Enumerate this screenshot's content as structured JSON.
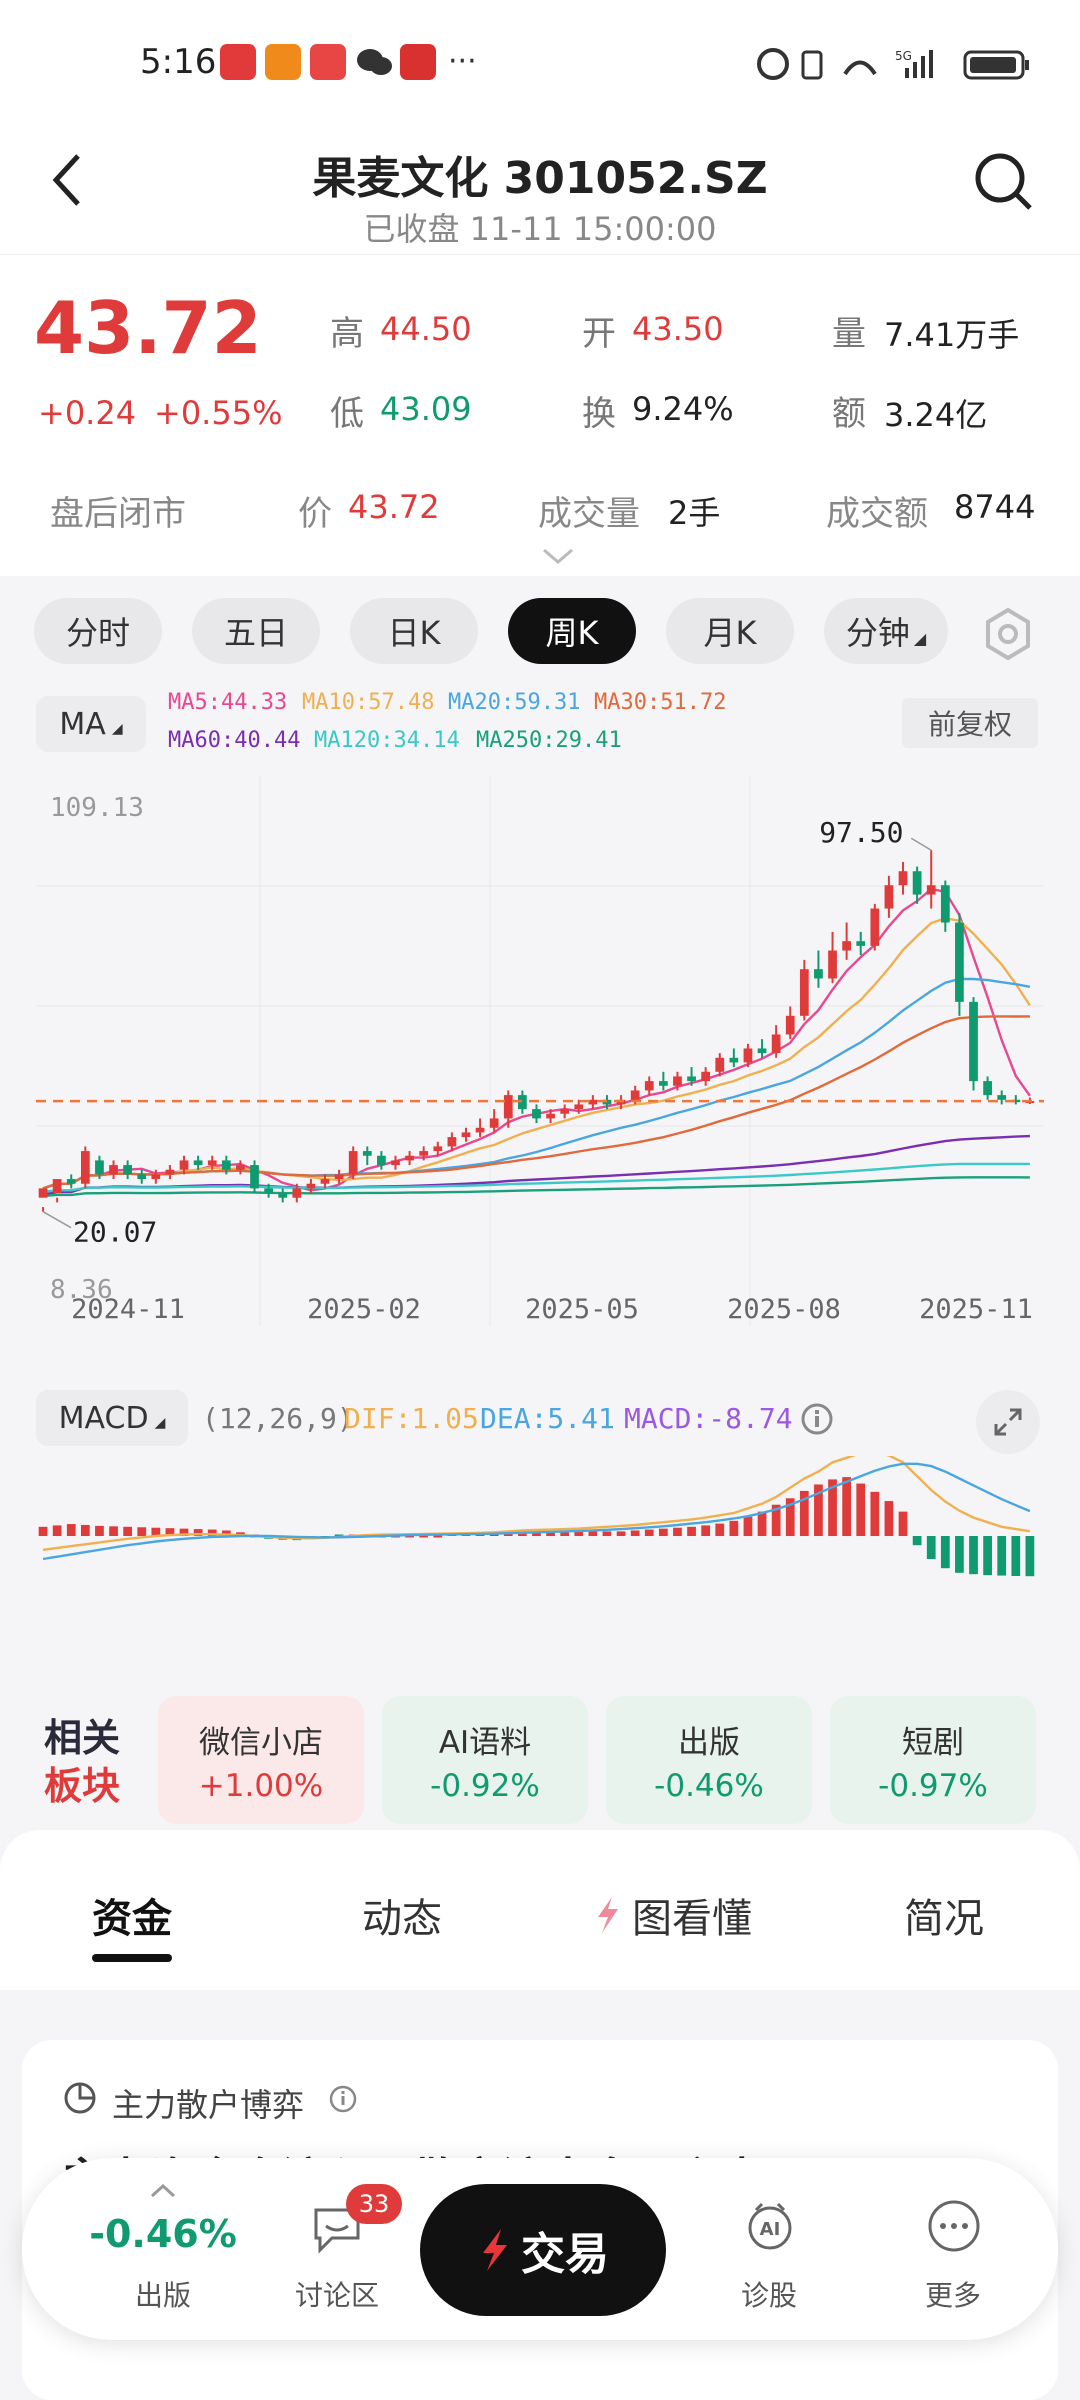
{
  "status": {
    "time": "5:16",
    "more": "···",
    "net": "5G"
  },
  "header": {
    "title": "果麦文化 301052.SZ",
    "subtitle": "已收盘 11-11 15:00:00"
  },
  "quote": {
    "price": "43.72",
    "change": "+0.24",
    "change_pct": "+0.55%",
    "high_label": "高",
    "high": "44.50",
    "low_label": "低",
    "low": "43.09",
    "open_label": "开",
    "open": "43.50",
    "turnover_label": "换",
    "turnover": "9.24%",
    "volume_label": "量",
    "volume": "7.41万手",
    "amount_label": "额",
    "amount": "3.24亿",
    "after_hours_label": "盘后闭市",
    "ah_price_label": "价",
    "ah_price": "43.72",
    "ah_volume_label": "成交量",
    "ah_volume": "2手",
    "ah_amount_label": "成交额",
    "ah_amount": "8744"
  },
  "period_tabs": [
    {
      "label": "分时"
    },
    {
      "label": "五日"
    },
    {
      "label": "日K"
    },
    {
      "label": "周K"
    },
    {
      "label": "月K"
    },
    {
      "label": "分钟"
    }
  ],
  "active_tab": "周K",
  "ma": {
    "selector": "MA",
    "ma5": "MA5:44.33",
    "ma10": "MA10:57.48",
    "ma20": "MA20:59.31",
    "ma30": "MA30:51.72",
    "ma60": "MA60:40.44",
    "ma120": "MA120:34.14",
    "ma250": "MA250:29.41",
    "adjust": "前复权"
  },
  "colors": {
    "up": "#e03b3b",
    "down": "#0f9a6f",
    "ma5": "#e8488f",
    "ma10": "#f0b050",
    "ma20": "#4aa6e0",
    "ma30": "#e06a3b",
    "ma60": "#7a2fb0",
    "ma120": "#3cc8c8",
    "ma250": "#1aa07a"
  },
  "chart_data": {
    "type": "candlestick",
    "y_top_label": "109.13",
    "y_bottom_label": "8.36",
    "max_mark": "97.50",
    "min_mark": "20.07",
    "current_price_line": 43.72,
    "x_ticks": [
      "2024-11",
      "2025-02",
      "2025-05",
      "2025-08",
      "2025-11"
    ],
    "candles": [
      [
        23,
        25,
        21,
        20
      ],
      [
        24,
        27,
        23,
        22
      ],
      [
        27,
        26,
        28,
        25
      ],
      [
        26,
        33,
        34,
        25
      ],
      [
        31,
        28,
        32,
        27
      ],
      [
        28,
        30,
        31,
        27
      ],
      [
        30,
        28,
        31,
        27
      ],
      [
        28,
        27,
        29,
        26
      ],
      [
        27,
        28,
        29,
        26
      ],
      [
        28,
        29,
        30,
        27
      ],
      [
        29,
        31,
        32,
        28
      ],
      [
        31,
        30,
        32,
        29
      ],
      [
        30,
        31,
        32,
        29
      ],
      [
        31,
        29,
        32,
        28
      ],
      [
        29,
        30,
        31,
        28
      ],
      [
        30,
        25,
        31,
        24
      ],
      [
        25,
        24,
        26,
        23
      ],
      [
        24,
        23,
        25,
        22
      ],
      [
        23,
        25,
        26,
        22
      ],
      [
        25,
        26,
        27,
        24
      ],
      [
        26,
        27,
        28,
        25
      ],
      [
        27,
        28,
        29,
        26
      ],
      [
        28,
        33,
        34,
        27
      ],
      [
        33,
        32,
        34,
        30
      ],
      [
        32,
        30,
        33,
        29
      ],
      [
        30,
        31,
        32,
        29
      ],
      [
        31,
        32,
        33,
        30
      ],
      [
        32,
        33,
        34,
        31
      ],
      [
        33,
        34,
        35,
        32
      ],
      [
        34,
        36,
        37,
        33
      ],
      [
        36,
        37,
        38,
        35
      ],
      [
        37,
        38,
        40,
        36
      ],
      [
        38,
        40,
        42,
        37
      ],
      [
        40,
        45,
        46,
        38
      ],
      [
        45,
        42,
        46,
        41
      ],
      [
        42,
        40,
        43,
        39
      ],
      [
        40,
        41,
        42,
        39
      ],
      [
        41,
        42,
        43,
        40
      ],
      [
        42,
        43,
        44,
        41
      ],
      [
        43,
        44,
        45,
        42
      ],
      [
        44,
        43,
        45,
        42
      ],
      [
        43,
        44,
        45,
        42
      ],
      [
        44,
        46,
        47,
        43
      ],
      [
        46,
        48,
        49,
        45
      ],
      [
        48,
        47,
        50,
        46
      ],
      [
        47,
        49,
        50,
        46
      ],
      [
        49,
        48,
        51,
        47
      ],
      [
        48,
        50,
        51,
        47
      ],
      [
        50,
        53,
        54,
        49
      ],
      [
        53,
        52,
        55,
        51
      ],
      [
        52,
        55,
        56,
        51
      ],
      [
        55,
        54,
        57,
        53
      ],
      [
        54,
        58,
        60,
        53
      ],
      [
        58,
        62,
        64,
        57
      ],
      [
        62,
        72,
        74,
        61
      ],
      [
        72,
        70,
        76,
        68
      ],
      [
        70,
        76,
        80,
        69
      ],
      [
        76,
        78,
        82,
        74
      ],
      [
        78,
        77,
        80,
        75
      ],
      [
        77,
        85,
        86,
        76
      ],
      [
        85,
        90,
        92,
        83
      ],
      [
        90,
        93,
        95,
        88
      ],
      [
        93,
        88,
        94,
        86
      ],
      [
        88,
        90,
        97.5,
        85
      ],
      [
        90,
        82,
        91,
        80
      ],
      [
        82,
        65,
        84,
        62
      ],
      [
        65,
        48,
        66,
        46
      ],
      [
        48,
        45,
        49,
        44
      ],
      [
        45,
        44,
        46,
        43
      ],
      [
        44,
        43.5,
        45,
        43
      ],
      [
        43.5,
        43.72,
        44.5,
        43.09
      ]
    ],
    "macd_summary": {
      "params": "(12,26,9)",
      "dif": "DIF:1.05",
      "dea": "DEA:5.41",
      "macd": "MACD:-8.74"
    },
    "macd_bars": [
      2,
      2.3,
      2.6,
      2.4,
      2.2,
      2.1,
      2,
      1.9,
      1.8,
      1.7,
      1.6,
      1.5,
      1.4,
      1.2,
      0.8,
      0.2,
      -0.6,
      -0.8,
      -0.9,
      -0.7,
      -0.5,
      -0.3,
      0.1,
      0.3,
      0.3,
      0.3,
      0.35,
      0.4,
      0.45,
      0.5,
      0.55,
      0.6,
      0.7,
      0.9,
      0.9,
      0.8,
      0.8,
      0.8,
      0.9,
      1,
      1,
      1,
      1.2,
      1.4,
      1.6,
      1.8,
      2,
      2.3,
      2.7,
      3.3,
      4.2,
      5.3,
      6.8,
      8.2,
      9.8,
      11.2,
      12.3,
      12.8,
      11.4,
      9.6,
      7.6,
      5.3,
      -2,
      -5,
      -7,
      -8,
      -8.3,
      -8.5,
      -8.6,
      -8.7,
      -8.74
    ],
    "dif_line": [
      -3,
      -2.6,
      -2.2,
      -1.8,
      -1.4,
      -1,
      -0.6,
      -0.3,
      0,
      0.2,
      0.3,
      0.4,
      0.4,
      0.3,
      0.2,
      0,
      -0.2,
      -0.4,
      -0.5,
      -0.5,
      -0.4,
      -0.2,
      0,
      0.2,
      0.3,
      0.35,
      0.4,
      0.45,
      0.5,
      0.55,
      0.6,
      0.7,
      0.8,
      1,
      1.2,
      1.3,
      1.4,
      1.5,
      1.6,
      1.8,
      2,
      2.2,
      2.4,
      2.7,
      3,
      3.3,
      3.6,
      4,
      4.5,
      5,
      6,
      7,
      8.5,
      10.5,
      12.5,
      14,
      16,
      17,
      18,
      18.2,
      17.5,
      16,
      13,
      10,
      7.5,
      5.5,
      4,
      3,
      2,
      1.5,
      1.05
    ],
    "dea_line": [
      -5,
      -4.5,
      -4,
      -3.5,
      -3,
      -2.5,
      -2,
      -1.6,
      -1.2,
      -0.9,
      -0.6,
      -0.4,
      -0.2,
      -0.1,
      0,
      0,
      0,
      -0.1,
      -0.2,
      -0.25,
      -0.3,
      -0.28,
      -0.2,
      -0.1,
      0,
      0.1,
      0.2,
      0.25,
      0.3,
      0.35,
      0.4,
      0.45,
      0.5,
      0.6,
      0.7,
      0.8,
      0.9,
      1,
      1.1,
      1.2,
      1.35,
      1.5,
      1.7,
      1.9,
      2.1,
      2.4,
      2.7,
      3,
      3.4,
      3.8,
      4.3,
      5,
      5.8,
      6.8,
      8,
      9.3,
      10.6,
      11.8,
      13,
      14.2,
      15.1,
      15.7,
      15.7,
      15.2,
      14,
      12.5,
      11,
      9.5,
      8,
      6.7,
      5.41
    ]
  },
  "sectors": {
    "title1": "相关",
    "title2": "板块",
    "items": [
      {
        "name": "微信小店",
        "pct": "+1.00%",
        "up": true
      },
      {
        "name": "AI语料",
        "pct": "-0.92%",
        "up": false
      },
      {
        "name": "出版",
        "pct": "-0.46%",
        "up": false
      },
      {
        "name": "短剧",
        "pct": "-0.97%",
        "up": false
      }
    ]
  },
  "content_tabs": [
    {
      "label": "资金"
    },
    {
      "label": "动态"
    },
    {
      "label": "图看懂"
    },
    {
      "label": "简况"
    }
  ],
  "card": {
    "title": "主力散户博弈",
    "headline": "主力资金净流入，散户流出多于主力"
  },
  "bottom_bar": {
    "index_pct": "-0.46%",
    "index_name": "出版",
    "discuss_label": "讨论区",
    "discuss_badge": "33",
    "trade_label": "交易",
    "diag_label": "诊股",
    "more_label": "更多",
    "ai": "AI"
  }
}
